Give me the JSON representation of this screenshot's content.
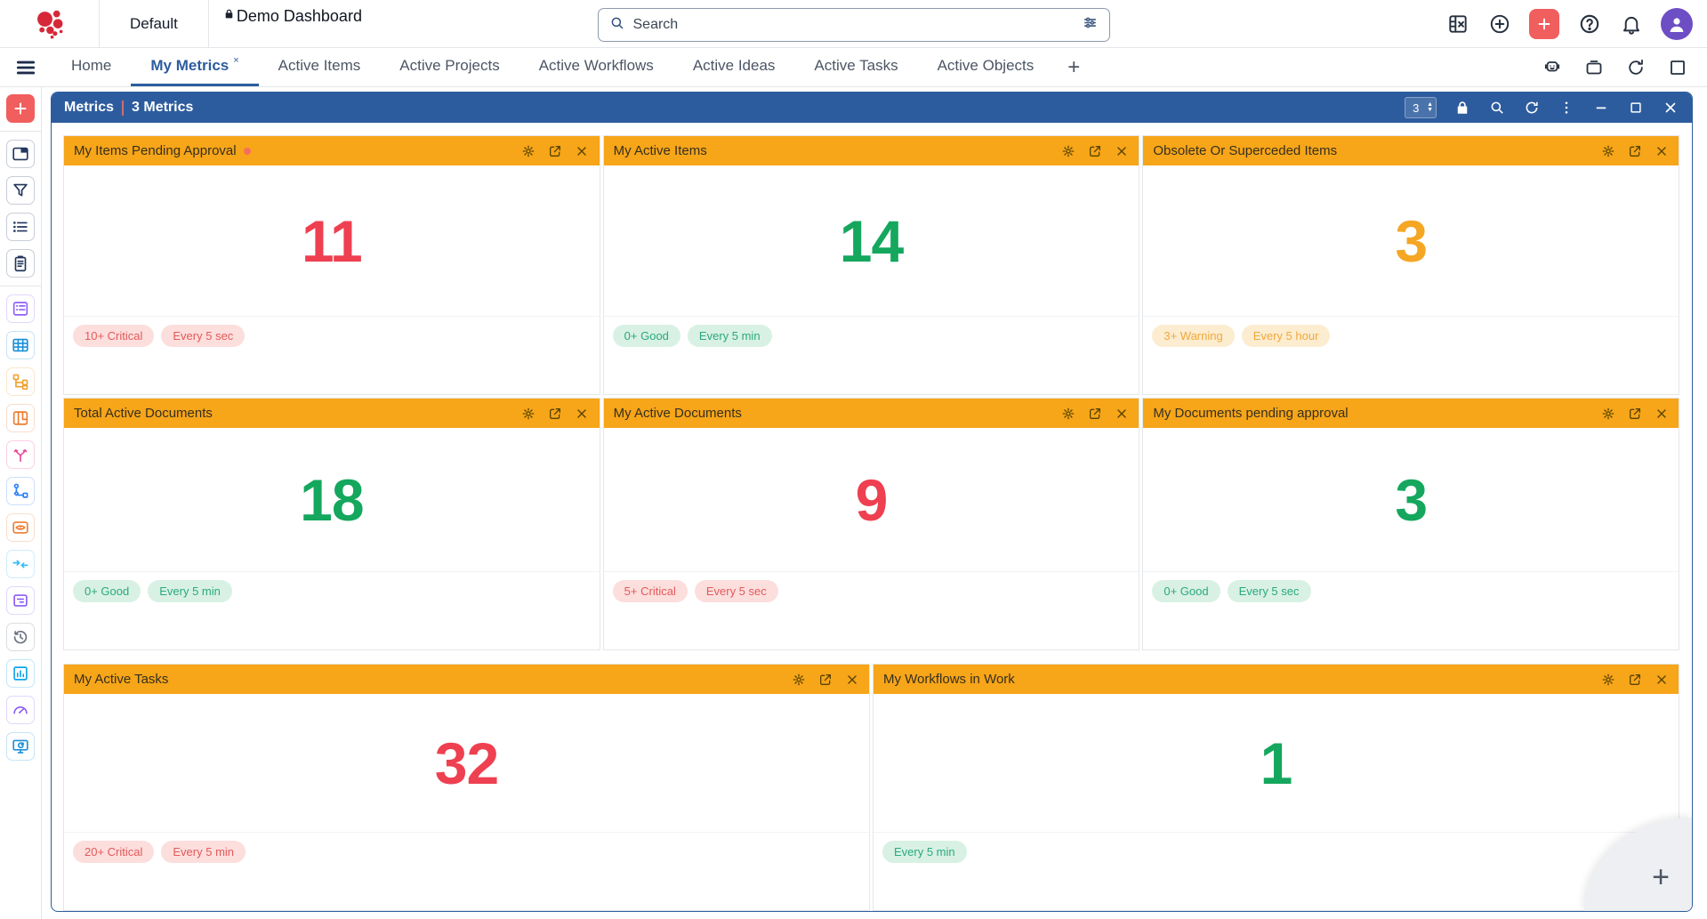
{
  "topbar": {
    "workspace_label": "Default",
    "dashboard_title": "Demo Dashboard",
    "search_placeholder": "Search",
    "right_icons": [
      {
        "id": "grid-clear",
        "name": "grid-clear-icon"
      },
      {
        "id": "add-circle",
        "name": "add-circle-icon"
      },
      {
        "id": "quick-add",
        "name": "quick-add-button",
        "accent": "#f15e5e"
      },
      {
        "id": "help",
        "name": "help-icon"
      },
      {
        "id": "bell",
        "name": "notifications-icon"
      },
      {
        "id": "avatar",
        "name": "user-avatar",
        "accent": "#6d4ec4"
      }
    ]
  },
  "tabbar": {
    "tabs": [
      {
        "label": "Home",
        "active": false,
        "closable": false
      },
      {
        "label": "My Metrics",
        "active": true,
        "closable": true,
        "close_glyph": "×"
      },
      {
        "label": "Active Items",
        "active": false,
        "closable": false
      },
      {
        "label": "Active Projects",
        "active": false,
        "closable": false
      },
      {
        "label": "Active Workflows",
        "active": false,
        "closable": false
      },
      {
        "label": "Active Ideas",
        "active": false,
        "closable": false
      },
      {
        "label": "Active Tasks",
        "active": false,
        "closable": false
      },
      {
        "label": "Active Objects",
        "active": false,
        "closable": false
      }
    ],
    "add_tab_label": "+",
    "right_icons": [
      {
        "id": "assistant",
        "name": "assistant-robot-icon"
      },
      {
        "id": "toolbox",
        "name": "toolbox-icon"
      },
      {
        "id": "refresh",
        "name": "refresh-icon"
      },
      {
        "id": "maximize",
        "name": "maximize-icon"
      }
    ]
  },
  "sidebar": {
    "items": [
      {
        "id": "add",
        "name": "add-icon",
        "color": "#ffffff",
        "bg": "#f15e5e",
        "divider_after": true
      },
      {
        "id": "window",
        "name": "window-icon",
        "color": "#22365e"
      },
      {
        "id": "filter",
        "name": "filter-icon",
        "color": "#22365e"
      },
      {
        "id": "list",
        "name": "list-icon",
        "color": "#22365e"
      },
      {
        "id": "clipboard",
        "name": "clipboard-icon",
        "color": "#22365e",
        "divider_after": true
      },
      {
        "id": "form",
        "name": "form-list-icon",
        "color": "#9061f9"
      },
      {
        "id": "table",
        "name": "table-icon",
        "color": "#1a90d9"
      },
      {
        "id": "tree",
        "name": "hierarchy-icon",
        "color": "#f0a030"
      },
      {
        "id": "kanban",
        "name": "kanban-icon",
        "color": "#ed7d31"
      },
      {
        "id": "split",
        "name": "split-arrows-icon",
        "color": "#ec4899"
      },
      {
        "id": "graph",
        "name": "graph-nodes-icon",
        "color": "#2d7ff9"
      },
      {
        "id": "eye",
        "name": "watch-view-icon",
        "color": "#ed7d31"
      },
      {
        "id": "converge",
        "name": "converge-arrows-icon",
        "color": "#38bdf8"
      },
      {
        "id": "cardlines",
        "name": "document-card-icon",
        "color": "#8b5cf6"
      },
      {
        "id": "history",
        "name": "history-icon",
        "color": "#6b7280"
      },
      {
        "id": "barchart",
        "name": "bar-chart-icon",
        "color": "#0ea5e9"
      },
      {
        "id": "gauge",
        "name": "gauge-icon",
        "color": "#8b5cf6"
      },
      {
        "id": "monitor",
        "name": "monitor-sync-icon",
        "color": "#1a90d9"
      }
    ]
  },
  "panel": {
    "title": "Metrics",
    "subtitle": "3 Metrics",
    "stepper_value": "3",
    "stepper_up": "▲",
    "stepper_down": "▼"
  },
  "cards": [
    {
      "title": "My Items Pending Approval",
      "has_dot": true,
      "value": "11",
      "value_color": "#ee4050",
      "badges": [
        {
          "label": "10+ Critical",
          "type": "critical"
        },
        {
          "label": "Every 5 sec",
          "type": "critical"
        }
      ]
    },
    {
      "title": "My Active Items",
      "has_dot": false,
      "value": "14",
      "value_color": "#14a75d",
      "badges": [
        {
          "label": "0+ Good",
          "type": "good"
        },
        {
          "label": "Every 5 min",
          "type": "good"
        }
      ]
    },
    {
      "title": "Obsolete Or Superceded Items",
      "has_dot": false,
      "value": "3",
      "value_color": "#f5a623",
      "badges": [
        {
          "label": "3+ Warning",
          "type": "warning"
        },
        {
          "label": "Every 5 hour",
          "type": "warning"
        }
      ]
    },
    {
      "title": "Total Active Documents",
      "has_dot": false,
      "value": "18",
      "value_color": "#14a75d",
      "badges": [
        {
          "label": "0+ Good",
          "type": "good"
        },
        {
          "label": "Every 5 min",
          "type": "good"
        }
      ]
    },
    {
      "title": "My Active Documents",
      "has_dot": false,
      "value": "9",
      "value_color": "#ee4050",
      "badges": [
        {
          "label": "5+ Critical",
          "type": "critical"
        },
        {
          "label": "Every 5 sec",
          "type": "critical"
        }
      ]
    },
    {
      "title": "My Documents pending approval",
      "has_dot": false,
      "value": "3",
      "value_color": "#14a75d",
      "badges": [
        {
          "label": "0+ Good",
          "type": "good"
        },
        {
          "label": "Every 5 sec",
          "type": "good"
        }
      ]
    },
    {
      "title": "My Active Tasks",
      "has_dot": false,
      "value": "32",
      "value_color": "#ee4050",
      "badges": [
        {
          "label": "20+ Critical",
          "type": "critical"
        },
        {
          "label": "Every 5 min",
          "type": "critical"
        }
      ]
    },
    {
      "title": "My Workflows in Work",
      "has_dot": false,
      "value": "1",
      "value_color": "#14a75d",
      "badges": [
        {
          "label": "Every 5 min",
          "type": "good"
        }
      ]
    }
  ],
  "fab": {
    "label": "+"
  },
  "colors": {
    "header_blue": "#2d5c9e",
    "card_header_orange": "#f7a519",
    "critical_red": "#ee4050",
    "good_green": "#14a75d",
    "warning_orange": "#f5a623"
  }
}
